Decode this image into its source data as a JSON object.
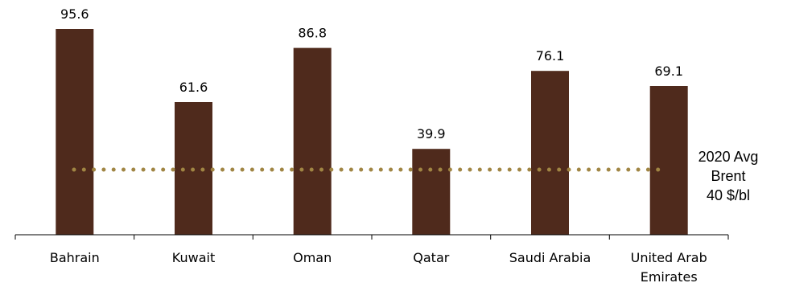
{
  "chart_data": {
    "type": "bar",
    "categories": [
      "Bahrain",
      "Kuwait",
      "Oman",
      "Qatar",
      "Saudi Arabia",
      "United Arab Emirates"
    ],
    "category_lines": [
      [
        "Bahrain"
      ],
      [
        "Kuwait"
      ],
      [
        "Oman"
      ],
      [
        "Qatar"
      ],
      [
        "Saudi Arabia"
      ],
      [
        "United Arab",
        "Emirates"
      ]
    ],
    "values": [
      95.6,
      61.6,
      86.8,
      39.9,
      76.1,
      69.1
    ],
    "value_labels": [
      "95.6",
      "61.6",
      "86.8",
      "39.9",
      "76.1",
      "69.1"
    ],
    "reference_line": {
      "value": 40,
      "style": "dotted",
      "label_lines": [
        "2020 Avg",
        "Brent",
        "40 $/bl"
      ]
    },
    "ylim": [
      0,
      100
    ],
    "grid": false,
    "legend": "none"
  },
  "colors": {
    "bar": "#4f2a1c",
    "reference_line": "#a08543",
    "axis": "#000000"
  }
}
